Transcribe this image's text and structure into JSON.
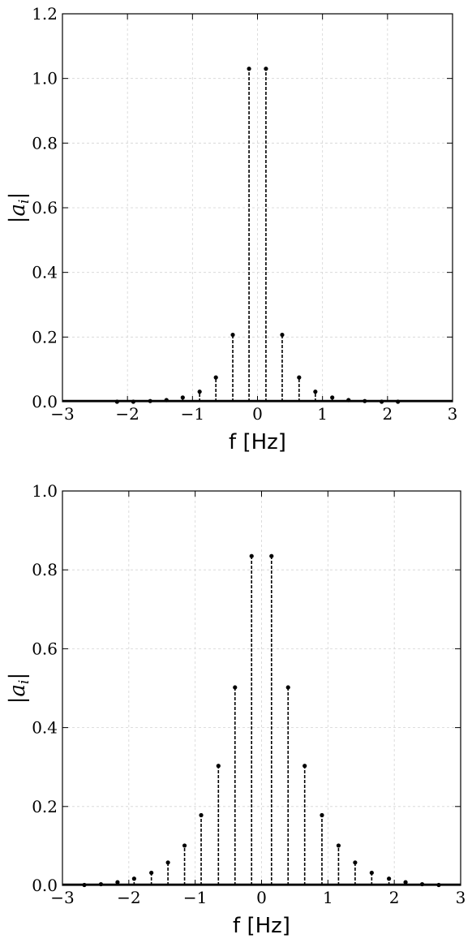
{
  "chart_data": [
    {
      "type": "stem",
      "title": "",
      "xlabel": "f [Hz]",
      "ylabel": "|a_i|",
      "ylabel_parts": {
        "bar_left": "|",
        "symbol": "a",
        "subscript": "i",
        "bar_right": "|"
      },
      "xlim": [
        -3,
        3
      ],
      "ylim": [
        0,
        1.2
      ],
      "xticks": [
        -3,
        -2,
        -1,
        0,
        1,
        2,
        3
      ],
      "xtick_labels": [
        "−3",
        "−2",
        "−1",
        "0",
        "1",
        "2",
        "3"
      ],
      "yticks": [
        0,
        0.2,
        0.4,
        0.6,
        0.8,
        1.0,
        1.2
      ],
      "ytick_labels": [
        "0.0",
        "0.2",
        "0.4",
        "0.6",
        "0.8",
        "1.0",
        "1.2"
      ],
      "grid": true,
      "line_style": "dashed",
      "marker": "dot",
      "color": "#000000",
      "x": [
        -2.16,
        -1.91,
        -1.65,
        -1.4,
        -1.15,
        -0.89,
        -0.64,
        -0.38,
        -0.13,
        0.13,
        0.38,
        0.64,
        0.89,
        1.15,
        1.4,
        1.65,
        1.91,
        2.16
      ],
      "y": [
        0.0,
        0.0,
        0.002,
        0.005,
        0.013,
        0.031,
        0.075,
        0.207,
        1.03,
        1.03,
        0.207,
        0.075,
        0.031,
        0.013,
        0.005,
        0.002,
        0.0,
        0.0
      ]
    },
    {
      "type": "stem",
      "title": "",
      "xlabel": "f [Hz]",
      "ylabel": "|a_i|",
      "ylabel_parts": {
        "bar_left": "|",
        "symbol": "a",
        "subscript": "i",
        "bar_right": "|"
      },
      "xlim": [
        -3,
        3
      ],
      "ylim": [
        0,
        1.0
      ],
      "xticks": [
        -3,
        -2,
        -1,
        0,
        1,
        2,
        3
      ],
      "xtick_labels": [
        "−3",
        "−2",
        "−1",
        "0",
        "1",
        "2",
        "3"
      ],
      "yticks": [
        0,
        0.2,
        0.4,
        0.6,
        0.8,
        1.0
      ],
      "ytick_labels": [
        "0.0",
        "0.2",
        "0.4",
        "0.6",
        "0.8",
        "1.0"
      ],
      "grid": true,
      "line_style": "dashed",
      "marker": "dot",
      "color": "#000000",
      "x": [
        -2.67,
        -2.42,
        -2.17,
        -1.92,
        -1.66,
        -1.41,
        -1.16,
        -0.91,
        -0.65,
        -0.4,
        -0.15,
        0.15,
        0.4,
        0.65,
        0.91,
        1.16,
        1.41,
        1.66,
        1.92,
        2.17,
        2.42,
        2.67
      ],
      "y": [
        0.001,
        0.003,
        0.008,
        0.017,
        0.032,
        0.058,
        0.101,
        0.178,
        0.303,
        0.502,
        0.835,
        0.835,
        0.502,
        0.303,
        0.178,
        0.101,
        0.058,
        0.032,
        0.017,
        0.008,
        0.003,
        0.001
      ]
    }
  ]
}
